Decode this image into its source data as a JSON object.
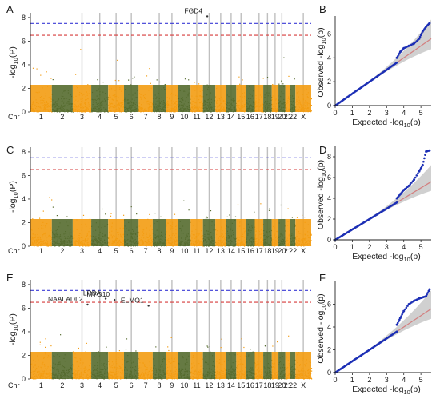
{
  "chart_data": [
    {
      "type": "scatter",
      "subtype": "manhattan",
      "panel": "A",
      "ylabel_main": "-log",
      "ylabel_sub": "10",
      "ylabel_end": "(P)",
      "chr_label": "Chr",
      "chromosomes": [
        "1",
        "2",
        "3",
        "4",
        "5",
        "6",
        "7",
        "8",
        "9",
        "10",
        "11",
        "12",
        "13",
        "14",
        "15",
        "16",
        "17",
        "18",
        "19",
        "20",
        "21",
        "22",
        "X"
      ],
      "yticks": [
        0,
        2,
        4,
        6,
        8
      ],
      "ylim": [
        0,
        8.4
      ],
      "threshold_blue": 7.5,
      "threshold_red": 6.5,
      "colors": {
        "odd": "#f39c12",
        "even": "#556b2f",
        "blue_line": "#3b3bd6",
        "red_line": "#d63b3b",
        "highlight": "#bfbfbf"
      },
      "highlighted_chromosomes": [
        "3",
        "4",
        "5",
        "6",
        "8",
        "9",
        "11",
        "12",
        "13",
        "14",
        "15",
        "17",
        "18",
        "19",
        "20",
        "X"
      ],
      "annotations": [
        {
          "label": "FGD4",
          "chromosome": "12",
          "x": 0.35,
          "y": 8.1
        }
      ]
    },
    {
      "type": "scatter",
      "subtype": "qq",
      "panel": "B",
      "xlabel_pre": "Expected",
      "xlabel_main": "-log",
      "xlabel_sub": "10",
      "xlabel_end": "(p)",
      "ylabel_pre": "Observed",
      "ylabel_main": "-log",
      "ylabel_sub": "10",
      "ylabel_end": "(p)",
      "xticks": [
        0,
        1,
        2,
        3,
        4,
        5
      ],
      "yticks": [
        0,
        2,
        4,
        6
      ],
      "xlim": [
        0,
        5.6
      ],
      "ylim": [
        0,
        7.5
      ],
      "colors": {
        "points": "#1c2fb5",
        "band": "#c8c8c8",
        "diag": "#d37f7f"
      },
      "tail": [
        [
          3.6,
          4.0
        ],
        [
          3.8,
          4.5
        ],
        [
          4.0,
          4.8
        ],
        [
          4.3,
          5.0
        ],
        [
          4.6,
          5.2
        ],
        [
          4.9,
          5.6
        ],
        [
          5.1,
          6.2
        ],
        [
          5.3,
          6.6
        ],
        [
          5.5,
          6.9
        ]
      ]
    },
    {
      "type": "scatter",
      "subtype": "manhattan",
      "panel": "C",
      "ylabel_main": "-log",
      "ylabel_sub": "10",
      "ylabel_end": "(P)",
      "chr_label": "Chr",
      "chromosomes": [
        "1",
        "2",
        "3",
        "4",
        "5",
        "6",
        "7",
        "8",
        "9",
        "10",
        "11",
        "12",
        "13",
        "14",
        "15",
        "16",
        "17",
        "18",
        "19",
        "20",
        "21",
        "22",
        "X"
      ],
      "yticks": [
        0,
        2,
        4,
        6,
        8
      ],
      "ylim": [
        0,
        8.4
      ],
      "threshold_blue": 7.5,
      "threshold_red": 6.5,
      "colors": {
        "odd": "#f39c12",
        "even": "#556b2f",
        "blue_line": "#3b3bd6",
        "red_line": "#d63b3b",
        "highlight": "#bfbfbf"
      },
      "highlighted_chromosomes": [
        "3",
        "4",
        "5",
        "6",
        "8",
        "9",
        "11",
        "12",
        "13",
        "14",
        "15",
        "17",
        "18",
        "19",
        "20",
        "X"
      ],
      "annotations": []
    },
    {
      "type": "scatter",
      "subtype": "qq",
      "panel": "D",
      "xlabel_pre": "Expected",
      "xlabel_main": "-log",
      "xlabel_sub": "10",
      "xlabel_end": "(p)",
      "ylabel_pre": "Observed",
      "ylabel_main": "-log",
      "ylabel_sub": "10",
      "ylabel_end": "(p)",
      "xticks": [
        0,
        1,
        2,
        3,
        4,
        5
      ],
      "yticks": [
        0,
        2,
        4,
        6,
        8
      ],
      "xlim": [
        0,
        5.6
      ],
      "ylim": [
        0,
        9
      ],
      "colors": {
        "points": "#1c2fb5",
        "band": "#c8c8c8",
        "diag": "#d37f7f"
      },
      "tail": [
        [
          3.6,
          4.0
        ],
        [
          3.8,
          4.4
        ],
        [
          4.0,
          4.8
        ],
        [
          4.3,
          5.2
        ],
        [
          4.6,
          5.8
        ],
        [
          4.9,
          6.6
        ],
        [
          5.1,
          7.2
        ],
        [
          5.3,
          8.5
        ],
        [
          5.5,
          8.6
        ]
      ]
    },
    {
      "type": "scatter",
      "subtype": "manhattan",
      "panel": "E",
      "ylabel_main": "-log",
      "ylabel_sub": "10",
      "ylabel_end": "(P)",
      "chr_label": "Chr",
      "chromosomes": [
        "1",
        "2",
        "3",
        "4",
        "5",
        "6",
        "7",
        "8",
        "9",
        "10",
        "11",
        "12",
        "13",
        "14",
        "15",
        "16",
        "17",
        "18",
        "19",
        "20",
        "21",
        "22",
        "X"
      ],
      "yticks": [
        0,
        2,
        4,
        6,
        8
      ],
      "ylim": [
        0,
        8.4
      ],
      "threshold_blue": 7.5,
      "threshold_red": 6.5,
      "colors": {
        "odd": "#f39c12",
        "even": "#556b2f",
        "blue_line": "#3b3bd6",
        "red_line": "#d63b3b",
        "highlight": "#bfbfbf"
      },
      "highlighted_chromosomes": [
        "3",
        "4",
        "5",
        "6",
        "8",
        "9",
        "11",
        "12",
        "13",
        "14",
        "15",
        "17",
        "18",
        "19",
        "20",
        "X"
      ],
      "annotations": [
        {
          "label": "ELMO1",
          "chromosome": "7",
          "x": 0.7,
          "y": 6.2
        },
        {
          "label": "MYO10",
          "chromosome": "5",
          "x": 0.4,
          "y": 6.7
        },
        {
          "label": "NAALADL2",
          "chromosome": "3",
          "x": 0.8,
          "y": 6.3
        },
        {
          "label": "LRBA",
          "chromosome": "4",
          "x": 0.85,
          "y": 6.8
        }
      ]
    },
    {
      "type": "scatter",
      "subtype": "qq",
      "panel": "F",
      "xlabel_pre": "Expected",
      "xlabel_main": "-log",
      "xlabel_sub": "10",
      "xlabel_end": "(p)",
      "ylabel_pre": "Observed",
      "ylabel_main": "-log",
      "ylabel_sub": "10",
      "ylabel_end": "(p)",
      "xticks": [
        0,
        1,
        2,
        3,
        4,
        5
      ],
      "yticks": [
        0,
        2,
        4,
        6
      ],
      "xlim": [
        0,
        5.6
      ],
      "ylim": [
        0,
        8
      ],
      "colors": {
        "points": "#1c2fb5",
        "band": "#c8c8c8",
        "diag": "#d37f7f"
      },
      "tail": [
        [
          3.6,
          4.2
        ],
        [
          3.8,
          4.8
        ],
        [
          4.0,
          5.4
        ],
        [
          4.3,
          6.0
        ],
        [
          4.6,
          6.3
        ],
        [
          4.9,
          6.5
        ],
        [
          5.1,
          6.6
        ],
        [
          5.3,
          6.7
        ],
        [
          5.5,
          7.3
        ]
      ]
    }
  ]
}
